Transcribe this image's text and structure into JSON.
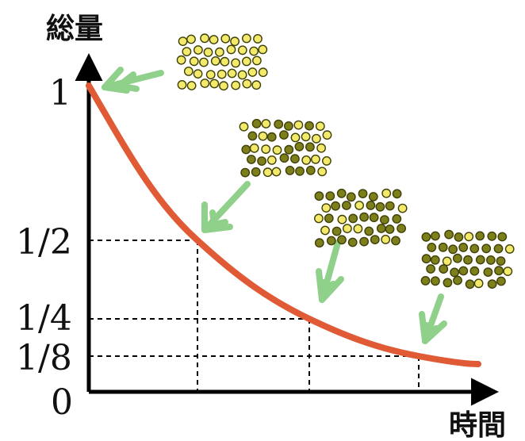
{
  "y_axis_title": "総量",
  "x_axis_title": "時間",
  "y_ticks": [
    {
      "label": "1",
      "value": 1
    },
    {
      "label": "1/2",
      "value": 0.5
    },
    {
      "label": "1/4",
      "value": 0.25
    },
    {
      "label": "1/8",
      "value": 0.125
    },
    {
      "label": "0",
      "value": 0
    }
  ],
  "curve": {
    "type": "exponential-decay",
    "color": "#e05a35",
    "half_life_marks": 3
  },
  "arrow_color": "#8fd08b",
  "particle_colors": {
    "undecayed": "#f3ea6c",
    "decayed": "#7d7f1b",
    "outline": "#3f3f08"
  },
  "particle_clusters": [
    {
      "name": "cluster-full",
      "decayed_fraction": 0
    },
    {
      "name": "cluster-half",
      "decayed_fraction": 0.5
    },
    {
      "name": "cluster-quarter",
      "decayed_fraction": 0.75
    },
    {
      "name": "cluster-eighth",
      "decayed_fraction": 0.875
    }
  ]
}
